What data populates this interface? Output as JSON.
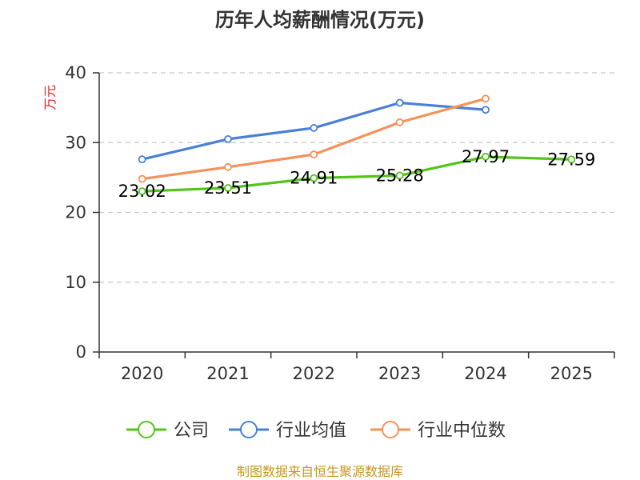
{
  "chart_data": {
    "type": "line",
    "title": "历年人均薪酬情况(万元)",
    "xlabel": "",
    "ylabel": "万元",
    "categories": [
      "2020",
      "2021",
      "2022",
      "2023",
      "2024",
      "2025"
    ],
    "ylim": [
      0,
      40
    ],
    "yticks": [
      0,
      10,
      20,
      30,
      40
    ],
    "grid": true,
    "legend_position": "bottom",
    "series": [
      {
        "name": "公司",
        "color": "#52c41a",
        "values": [
          23.02,
          23.51,
          24.91,
          25.28,
          27.97,
          27.59
        ],
        "labels": [
          "23.02",
          "23.51",
          "24.91",
          "25.28",
          "27.97",
          "27.59"
        ]
      },
      {
        "name": "行业均值",
        "color": "#4a7fd8",
        "values": [
          27.6,
          30.5,
          32.1,
          35.7,
          34.7,
          null
        ]
      },
      {
        "name": "行业中位数",
        "color": "#f5915a",
        "values": [
          24.8,
          26.5,
          28.3,
          32.9,
          36.3,
          null
        ]
      }
    ],
    "source": "制图数据来自恒生聚源数据库"
  }
}
